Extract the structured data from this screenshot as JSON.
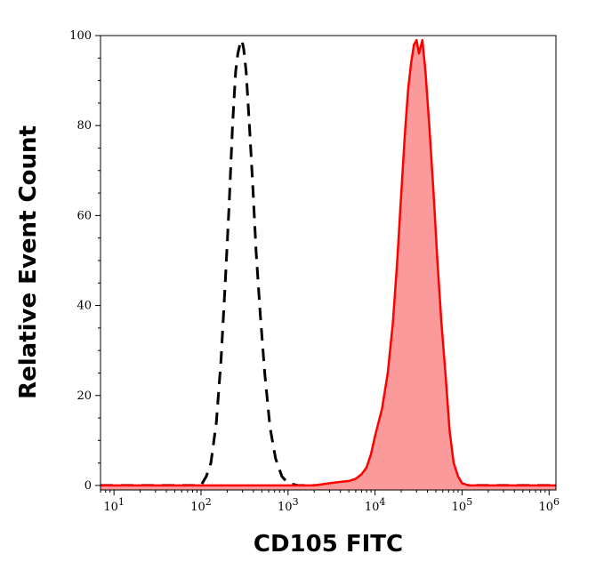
{
  "chart_data": {
    "type": "area",
    "title": "",
    "xlabel": "CD105 FITC",
    "ylabel": "Relative Event Count",
    "x_scale": "log",
    "xlim": [
      7,
      1200000
    ],
    "ylim": [
      -1,
      100
    ],
    "grid": false,
    "legend": "none",
    "x_ticks": [
      10,
      100,
      1000,
      10000,
      100000,
      1000000
    ],
    "x_tick_labels": [
      {
        "base": "10",
        "exp": "1"
      },
      {
        "base": "10",
        "exp": "2"
      },
      {
        "base": "10",
        "exp": "3"
      },
      {
        "base": "10",
        "exp": "4"
      },
      {
        "base": "10",
        "exp": "5"
      },
      {
        "base": "10",
        "exp": "6"
      }
    ],
    "y_ticks": [
      0,
      20,
      40,
      60,
      80,
      100
    ],
    "y_tick_labels": [
      "0",
      "20",
      "40",
      "60",
      "80",
      "100"
    ],
    "series": [
      {
        "style": "dashed",
        "color": "#000000",
        "fill": "none",
        "x": [
          7,
          60,
          80,
          100,
          115,
          130,
          150,
          170,
          190,
          210,
          230,
          250,
          265,
          280,
          295,
          310,
          330,
          360,
          390,
          430,
          480,
          540,
          620,
          720,
          850,
          1000,
          1300,
          1600,
          3000,
          1200000
        ],
        "y": [
          0,
          0,
          0,
          0,
          2,
          5,
          14,
          28,
          45,
          62,
          80,
          92,
          96,
          98,
          99,
          97,
          92,
          80,
          68,
          52,
          38,
          25,
          13,
          6,
          2,
          0.5,
          0,
          0,
          0,
          0
        ]
      },
      {
        "style": "solid",
        "color": "#ff0000",
        "fill": "#fa9a9a",
        "x": [
          7,
          1000,
          2000,
          3000,
          4000,
          5000,
          6000,
          7000,
          8000,
          9000,
          10000,
          12000,
          14000,
          16000,
          18000,
          20000,
          22000,
          24000,
          26000,
          28000,
          30000,
          32000,
          35000,
          38000,
          42000,
          47000,
          52000,
          58000,
          65000,
          72000,
          80000,
          90000,
          100000,
          120000,
          150000,
          1200000
        ],
        "y": [
          0,
          0,
          0,
          0.5,
          0.8,
          1,
          1.5,
          2.5,
          4,
          7,
          11,
          17,
          25,
          36,
          50,
          65,
          78,
          88,
          94,
          98,
          99,
          96,
          99,
          92,
          80,
          65,
          50,
          36,
          24,
          12,
          5,
          2,
          0.5,
          0,
          0,
          0
        ]
      }
    ]
  }
}
